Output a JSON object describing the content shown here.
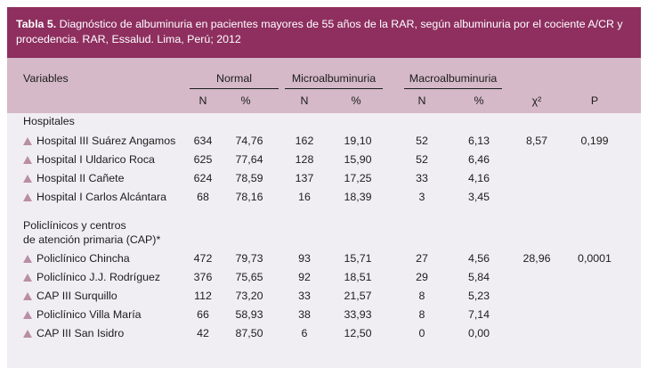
{
  "table": {
    "title_bold": "Tabla 5.",
    "title_text": " Diagnóstico de albuminuria en pacientes mayores de 55 años de la RAR, según albuminuria por el cociente A/CR y procedencia. RAR, Essalud. Lima, Perú; 2012",
    "header": {
      "variables": "Variables",
      "normal": "Normal",
      "micro": "Microalbuminuria",
      "macro": "Macroalbuminuria",
      "n": "N",
      "pct": "%",
      "chi": "χ²",
      "p": "P"
    },
    "sections": [
      {
        "title_lines": [
          "Hospitales"
        ],
        "chi": "8,57",
        "p": "0,199",
        "rows": [
          {
            "label": "Hospital III Suárez Angamos",
            "n_norm": "634",
            "p_norm": "74,76",
            "n_micro": "162",
            "p_micro": "19,10",
            "n_macro": "52",
            "p_macro": "6,13"
          },
          {
            "label": "Hospital I Uldarico Roca",
            "n_norm": "625",
            "p_norm": "77,64",
            "n_micro": "128",
            "p_micro": "15,90",
            "n_macro": "52",
            "p_macro": "6,46"
          },
          {
            "label": "Hospital II Cañete",
            "n_norm": "624",
            "p_norm": "78,59",
            "n_micro": "137",
            "p_micro": "17,25",
            "n_macro": "33",
            "p_macro": "4,16"
          },
          {
            "label": "Hospital I Carlos Alcántara",
            "n_norm": "68",
            "p_norm": "78,16",
            "n_micro": "16",
            "p_micro": "18,39",
            "n_macro": "3",
            "p_macro": "3,45"
          }
        ]
      },
      {
        "title_lines": [
          "Policlínicos y centros",
          "de atención primaria (CAP)*"
        ],
        "chi": "28,96",
        "p": "0,0001",
        "rows": [
          {
            "label": "Policlínico Chincha",
            "n_norm": "472",
            "p_norm": "79,73",
            "n_micro": "93",
            "p_micro": "15,71",
            "n_macro": "27",
            "p_macro": "4,56"
          },
          {
            "label": "Policlínico J.J. Rodríguez",
            "n_norm": "376",
            "p_norm": "75,65",
            "n_micro": "92",
            "p_micro": "18,51",
            "n_macro": "29",
            "p_macro": "5,84"
          },
          {
            "label": "CAP III Surquillo",
            "n_norm": "112",
            "p_norm": "73,20",
            "n_micro": "33",
            "p_micro": "21,57",
            "n_macro": "8",
            "p_macro": "5,23"
          },
          {
            "label": "Policlínico Villa María",
            "n_norm": "66",
            "p_norm": "58,93",
            "n_micro": "38",
            "p_micro": "33,93",
            "n_macro": "8",
            "p_macro": "7,14"
          },
          {
            "label": "CAP III San Isidro",
            "n_norm": "42",
            "p_norm": "87,50",
            "n_micro": "6",
            "p_micro": "12,50",
            "n_macro": "0",
            "p_macro": "0,00"
          }
        ]
      }
    ]
  },
  "colors": {
    "title_bg": "#8e2f5f",
    "header_bg": "#d5b9c8",
    "body_bg": "#f1eef3",
    "bullet": "#b98ea5"
  }
}
